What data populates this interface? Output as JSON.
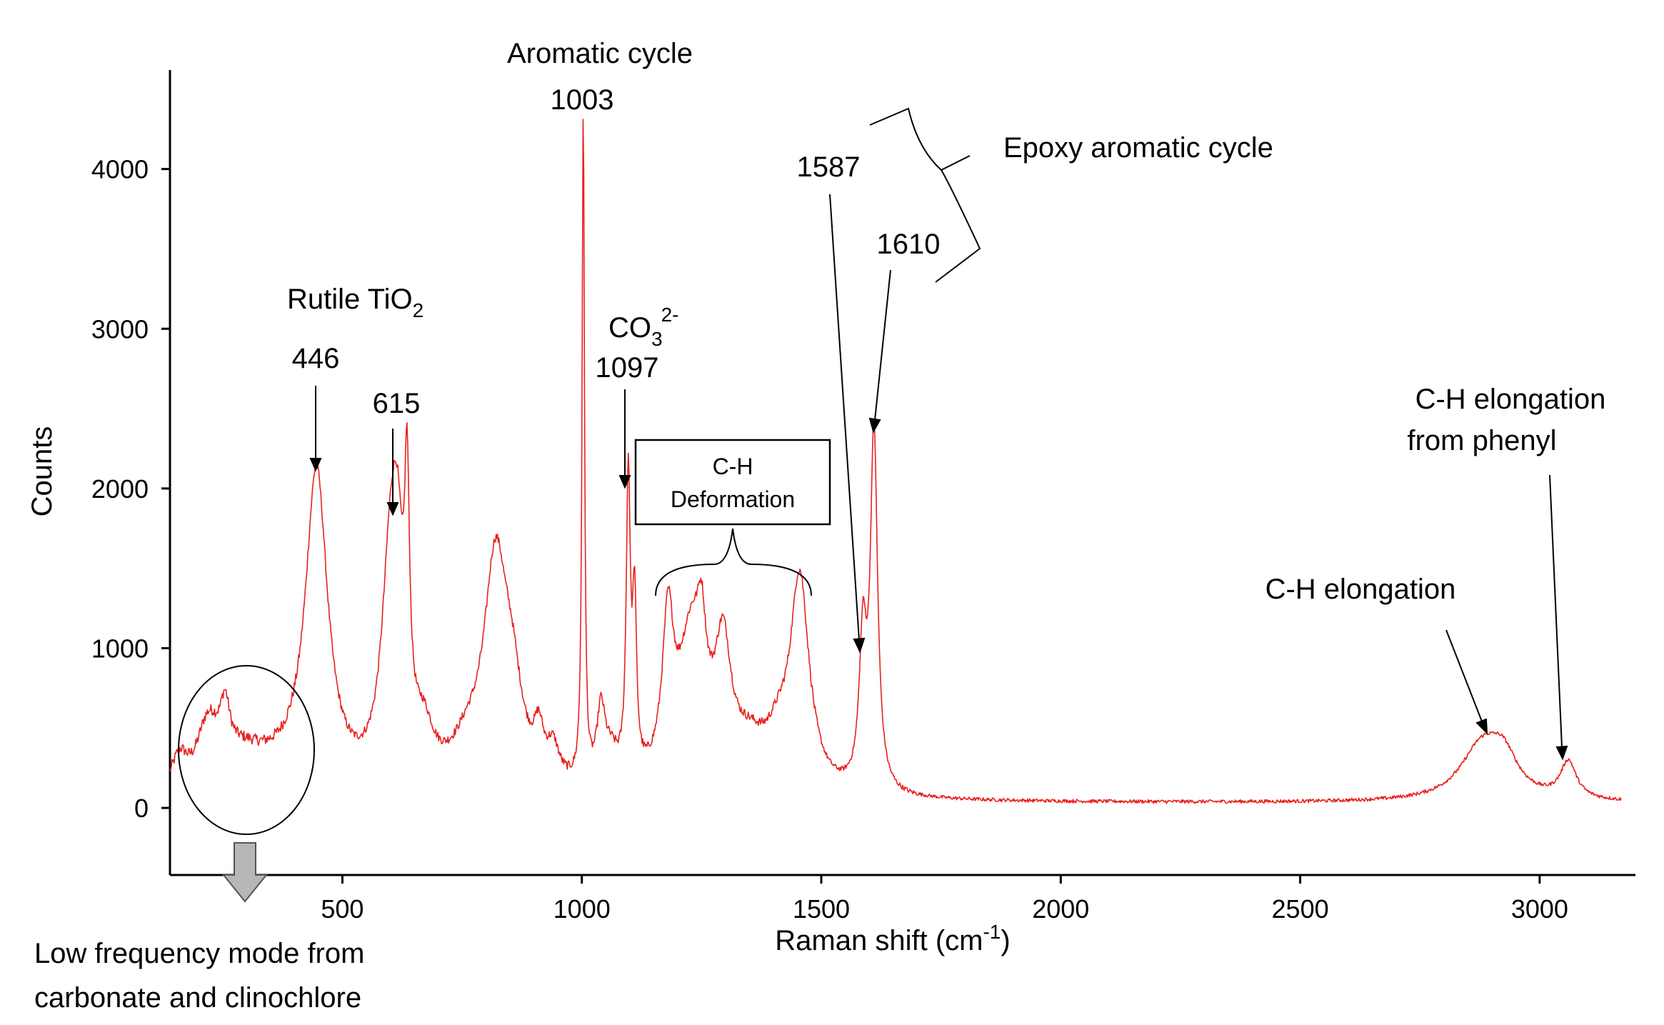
{
  "chart_data": {
    "type": "line",
    "title": "",
    "xlabel": "Raman shift (cm",
    "xlabel_sup": "-1",
    "xlabel_end": ")",
    "ylabel": "Counts",
    "xlim": [
      140,
      3200
    ],
    "ylim": [
      -420,
      4620
    ],
    "xticks": [
      500,
      1000,
      1500,
      2000,
      2500,
      3000
    ],
    "yticks": [
      0,
      1000,
      2000,
      3000,
      4000
    ],
    "series": [
      {
        "name": "Raman spectrum",
        "color": "#e8211d",
        "peaks": [
          {
            "center": 160,
            "height": 200,
            "width": 20
          },
          {
            "center": 210,
            "height": 130,
            "width": 20
          },
          {
            "center": 225,
            "height": 270,
            "width": 25
          },
          {
            "center": 255,
            "height": 320,
            "width": 12
          },
          {
            "center": 290,
            "height": 200,
            "width": 60
          },
          {
            "center": 375,
            "height": 120,
            "width": 90
          },
          {
            "center": 446,
            "height": 1950,
            "width": 28
          },
          {
            "center": 600,
            "height": 1250,
            "width": 22
          },
          {
            "center": 615,
            "height": 950,
            "width": 15
          },
          {
            "center": 635,
            "height": 1450,
            "width": 6
          },
          {
            "center": 670,
            "height": 280,
            "width": 25
          },
          {
            "center": 760,
            "height": 200,
            "width": 40
          },
          {
            "center": 820,
            "height": 1380,
            "width": 30
          },
          {
            "center": 855,
            "height": 450,
            "width": 25
          },
          {
            "center": 910,
            "height": 260,
            "width": 12
          },
          {
            "center": 940,
            "height": 200,
            "width": 15
          },
          {
            "center": 1003,
            "height": 4200,
            "width": 3
          },
          {
            "center": 1040,
            "height": 420,
            "width": 10
          },
          {
            "center": 1060,
            "height": 180,
            "width": 20
          },
          {
            "center": 1097,
            "height": 1850,
            "width": 5
          },
          {
            "center": 1110,
            "height": 1050,
            "width": 5
          },
          {
            "center": 1180,
            "height": 920,
            "width": 14
          },
          {
            "center": 1230,
            "height": 960,
            "width": 35
          },
          {
            "center": 1250,
            "height": 420,
            "width": 10
          },
          {
            "center": 1295,
            "height": 760,
            "width": 20
          },
          {
            "center": 1350,
            "height": 240,
            "width": 45
          },
          {
            "center": 1410,
            "height": 220,
            "width": 30
          },
          {
            "center": 1455,
            "height": 1300,
            "width": 24
          },
          {
            "center": 1587,
            "height": 900,
            "width": 9
          },
          {
            "center": 1610,
            "height": 2220,
            "width": 9
          },
          {
            "center": 2880,
            "height": 340,
            "width": 55
          },
          {
            "center": 2925,
            "height": 200,
            "width": 35
          },
          {
            "center": 3060,
            "height": 230,
            "width": 20
          }
        ]
      }
    ],
    "annotations": [
      {
        "text": "Aromatic cycle",
        "x": 1003,
        "y": 4700
      },
      {
        "text": "1003",
        "x": 1003,
        "y": 4400
      },
      {
        "text": "Rutile TiO",
        "sub": "2",
        "x": 446,
        "y": 3060
      },
      {
        "text": "446",
        "x": 446,
        "y": 2760
      },
      {
        "text": "615",
        "x": 615,
        "y": 2480
      },
      {
        "text": "CO",
        "sub": "3",
        "sup": "2-",
        "x": 1097,
        "y": 2880
      },
      {
        "text": "1097",
        "x": 1097,
        "y": 2590
      },
      {
        "text": "C-H",
        "x": 1277,
        "y": 2100
      },
      {
        "text": "Deformation",
        "x": 1277,
        "y": 1880
      },
      {
        "text": "1587",
        "x": 1587,
        "y": 3990
      },
      {
        "text": "1610",
        "x": 1610,
        "y": 3480
      },
      {
        "text": "Epoxy aromatic cycle",
        "x": 2068,
        "y": 4080
      },
      {
        "text": "C-H elongation",
        "x": 2735,
        "y": 1340
      },
      {
        "text": "C-H elongation",
        "x": 2920,
        "y": 2550
      },
      {
        "text": "from phenyl",
        "x": 2880,
        "y": 2270
      },
      {
        "text": "Low frequency mode from",
        "x": 300,
        "y": -930
      },
      {
        "text": "carbonate and clinochlore",
        "x": 300,
        "y": -1200
      }
    ]
  }
}
